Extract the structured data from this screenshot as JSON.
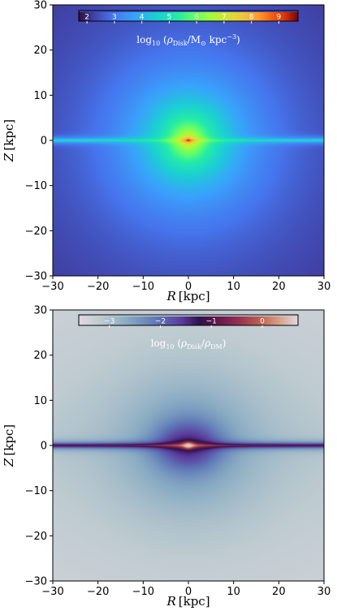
{
  "chart_data": [
    {
      "type": "heatmap",
      "xlabel": "R [kpc]",
      "ylabel": "Z [kpc]",
      "xlim": [
        -30,
        30
      ],
      "ylim": [
        -30,
        30
      ],
      "xticks": [
        -30,
        -20,
        -10,
        0,
        10,
        20,
        30
      ],
      "yticks": [
        -30,
        -20,
        -10,
        0,
        10,
        20,
        30
      ],
      "colormap": "turbo",
      "colorbar": {
        "label": "log10 (ρDisk / M⊙ kpc−3)",
        "range": [
          1.7,
          9.7
        ],
        "ticks": [
          2,
          3,
          4,
          5,
          6,
          7,
          8,
          9
        ],
        "placement": "top-inside",
        "tick_label_color": "#ffffff"
      },
      "field": {
        "description_values": "log10 disk density",
        "center_value": 9.6,
        "midplane_value_at_R30": 6.0,
        "corner_value": 1.8,
        "scale_height_thin_kpc": 0.5
      }
    },
    {
      "type": "heatmap",
      "xlabel": "R [kpc]",
      "ylabel": "Z [kpc]",
      "xlim": [
        -30,
        30
      ],
      "ylim": [
        -30,
        30
      ],
      "xticks": [
        -30,
        -20,
        -10,
        0,
        10,
        20,
        30
      ],
      "yticks": [
        -30,
        -20,
        -10,
        0,
        10,
        20,
        30
      ],
      "colormap": "twilight",
      "colorbar": {
        "label": "log10 (ρDisk / ρDM)",
        "range": [
          -3.6,
          0.7
        ],
        "ticks": [
          -3,
          -2,
          -1,
          0
        ],
        "placement": "top-inside",
        "tick_label_color": "#ffffff"
      },
      "field": {
        "description_values": "log10 disk-to-dark-matter density ratio",
        "center_value": 0.6,
        "midplane_value_at_R30": -0.5,
        "corner_value": -3.6
      }
    }
  ],
  "labels": {
    "panels": [
      {
        "xlabel_var": "R",
        "xlabel_unit": "[kpc]",
        "ylabel_var": "Z",
        "ylabel_unit": "[kpc]",
        "cb_prefix": "log",
        "cb_sub": "10",
        "cb_open": " (",
        "cb_rho": "ρ",
        "cb_rho_sub": "Disk",
        "cb_slash": "/M",
        "cb_sun": "⊙",
        "cb_tail": " kpc",
        "cb_sup": "−3",
        "cb_close": ")"
      },
      {
        "xlabel_var": "R",
        "xlabel_unit": "[kpc]",
        "ylabel_var": "Z",
        "ylabel_unit": "[kpc]",
        "cb_prefix": "log",
        "cb_sub": "10",
        "cb_open": " (",
        "cb_rho": "ρ",
        "cb_rho_sub": "Disk",
        "cb_slash": "/",
        "cb_rho2": "ρ",
        "cb_rho2_sub": "DM",
        "cb_close": ")"
      }
    ]
  }
}
